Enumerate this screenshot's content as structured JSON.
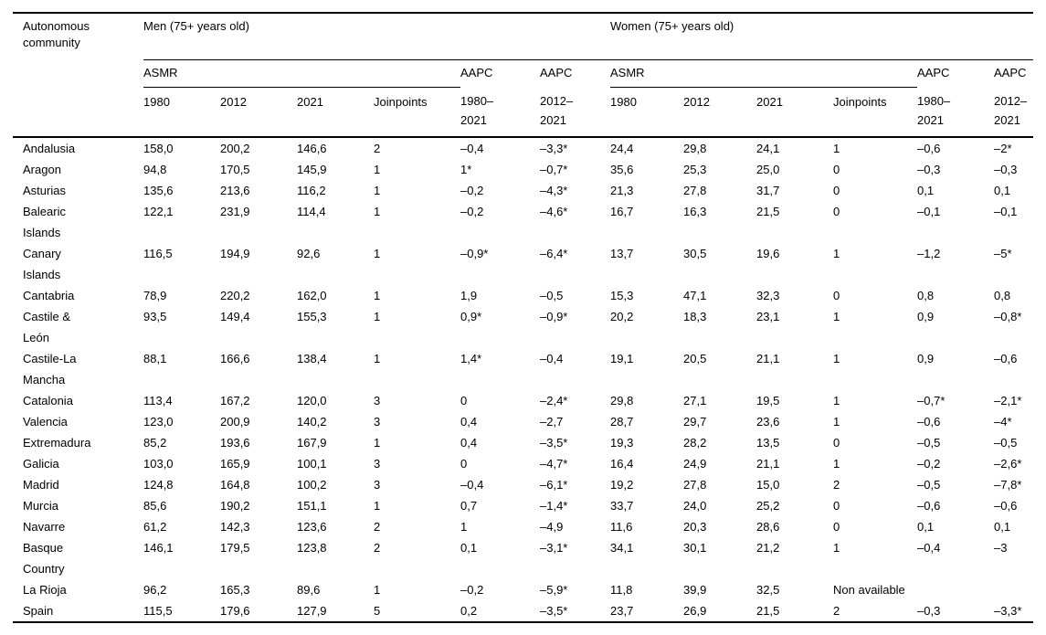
{
  "table": {
    "row_header": "Autonomous\ncommunity",
    "groups": [
      {
        "label": "Men (75+ years old)"
      },
      {
        "label": "Women (75+ years old)"
      }
    ],
    "subheaders": {
      "asmr": "ASMR",
      "aapc": "AAPC"
    },
    "columns": {
      "y1980": "1980",
      "y2012": "2012",
      "y2021": "2021",
      "joinpoints": "Joinpoints",
      "range_1980_2021": "1980–\n2021",
      "range_2012_2021": "2012–\n2021"
    },
    "rows": [
      {
        "community": "Andalusia",
        "cells": [
          "158,0",
          "200,2",
          "146,6",
          "2",
          "–0,4",
          "–3,3*",
          "24,4",
          "29,8",
          "24,1",
          "1",
          "–0,6",
          "–2*"
        ]
      },
      {
        "community": "Aragon",
        "cells": [
          "94,8",
          "170,5",
          "145,9",
          "1",
          "1*",
          "–0,7*",
          "35,6",
          "25,3",
          "25,0",
          "0",
          "–0,3",
          "–0,3"
        ]
      },
      {
        "community": "Asturias",
        "cells": [
          "135,6",
          "213,6",
          "116,2",
          "1",
          "–0,2",
          "–4,3*",
          "21,3",
          "27,8",
          "31,7",
          "0",
          "0,1",
          "0,1"
        ]
      },
      {
        "community": "Balearic\nIslands",
        "cells": [
          "122,1",
          "231,9",
          "114,4",
          "1",
          "–0,2",
          "–4,6*",
          "16,7",
          "16,3",
          "21,5",
          "0",
          "–0,1",
          "–0,1"
        ]
      },
      {
        "community": "Canary\nIslands",
        "cells": [
          "116,5",
          "194,9",
          "92,6",
          "1",
          "–0,9*",
          "–6,4*",
          "13,7",
          "30,5",
          "19,6",
          "1",
          "–1,2",
          "–5*"
        ]
      },
      {
        "community": "Cantabria",
        "cells": [
          "78,9",
          "220,2",
          "162,0",
          "1",
          "1,9",
          "–0,5",
          "15,3",
          "47,1",
          "32,3",
          "0",
          "0,8",
          "0,8"
        ]
      },
      {
        "community": "Castile &\nLeón",
        "cells": [
          "93,5",
          "149,4",
          "155,3",
          "1",
          "0,9*",
          "–0,9*",
          "20,2",
          "18,3",
          "23,1",
          "1",
          "0,9",
          "–0,8*"
        ]
      },
      {
        "community": "Castile-La\nMancha",
        "cells": [
          "88,1",
          "166,6",
          "138,4",
          "1",
          "1,4*",
          "–0,4",
          "19,1",
          "20,5",
          "21,1",
          "1",
          "0,9",
          "–0,6"
        ]
      },
      {
        "community": "Catalonia",
        "cells": [
          "113,4",
          "167,2",
          "120,0",
          "3",
          "0",
          "–2,4*",
          "29,8",
          "27,1",
          "19,5",
          "1",
          "–0,7*",
          "–2,1*"
        ]
      },
      {
        "community": "Valencia",
        "cells": [
          "123,0",
          "200,9",
          "140,2",
          "3",
          "0,4",
          "–2,7",
          "28,7",
          "29,7",
          "23,6",
          "1",
          "–0,6",
          "–4*"
        ]
      },
      {
        "community": "Extremadura",
        "cells": [
          "85,2",
          "193,6",
          "167,9",
          "1",
          "0,4",
          "–3,5*",
          "19,3",
          "28,2",
          "13,5",
          "0",
          "–0,5",
          "–0,5"
        ]
      },
      {
        "community": "Galicia",
        "cells": [
          "103,0",
          "165,9",
          "100,1",
          "3",
          "0",
          "–4,7*",
          "16,4",
          "24,9",
          "21,1",
          "1",
          "–0,2",
          "–2,6*"
        ]
      },
      {
        "community": "Madrid",
        "cells": [
          "124,8",
          "164,8",
          "100,2",
          "3",
          "–0,4",
          "–6,1*",
          "19,2",
          "27,8",
          "15,0",
          "2",
          "–0,5",
          "–7,8*"
        ]
      },
      {
        "community": "Murcia",
        "cells": [
          "85,6",
          "190,2",
          "151,1",
          "1",
          "0,7",
          "–1,4*",
          "33,7",
          "24,0",
          "25,2",
          "0",
          "–0,6",
          "–0,6"
        ]
      },
      {
        "community": "Navarre",
        "cells": [
          "61,2",
          "142,3",
          "123,6",
          "2",
          "1",
          "–4,9",
          "11,6",
          "20,3",
          "28,6",
          "0",
          "0,1",
          "0,1"
        ]
      },
      {
        "community": "Basque\nCountry",
        "cells": [
          "146,1",
          "179,5",
          "123,8",
          "2",
          "0,1",
          "–3,1*",
          "34,1",
          "30,1",
          "21,2",
          "1",
          "–0,4",
          "–3"
        ]
      },
      {
        "community": "La Rioja",
        "cells": [
          "96,2",
          "165,3",
          "89,6",
          "1",
          "–0,2",
          "–5,9*",
          "11,8",
          "39,9",
          "32,5"
        ],
        "note": "Non available",
        "note_colspan": 3
      },
      {
        "community": "Spain",
        "cells": [
          "115,5",
          "179,6",
          "127,9",
          "5",
          "0,2",
          "–3,5*",
          "23,7",
          "26,9",
          "21,5",
          "2",
          "–0,3",
          "–3,3*"
        ]
      }
    ]
  }
}
